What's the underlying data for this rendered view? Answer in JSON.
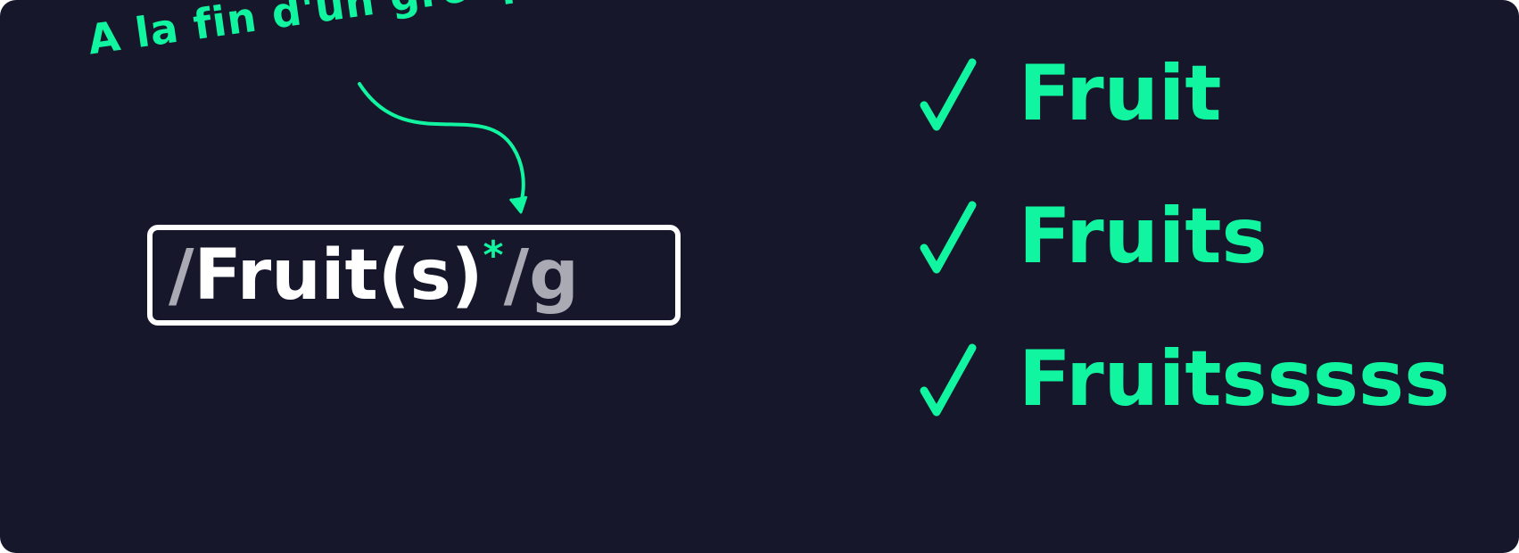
{
  "annotation": {
    "text": "A la fin d'un groupe"
  },
  "regex": {
    "open_slash": "/",
    "pattern": "Fruit(s)",
    "quantifier": "*",
    "close_slash": "/",
    "flag": "g"
  },
  "matches": [
    {
      "text": "Fruit",
      "status_icon": "check-icon"
    },
    {
      "text": "Fruits",
      "status_icon": "check-icon"
    },
    {
      "text": "Fruitsssss",
      "status_icon": "check-icon"
    }
  ],
  "colors": {
    "background": "#16172b",
    "accent": "#12f5a0",
    "pattern": "#ffffff",
    "delimiter": "#a9aab3"
  }
}
